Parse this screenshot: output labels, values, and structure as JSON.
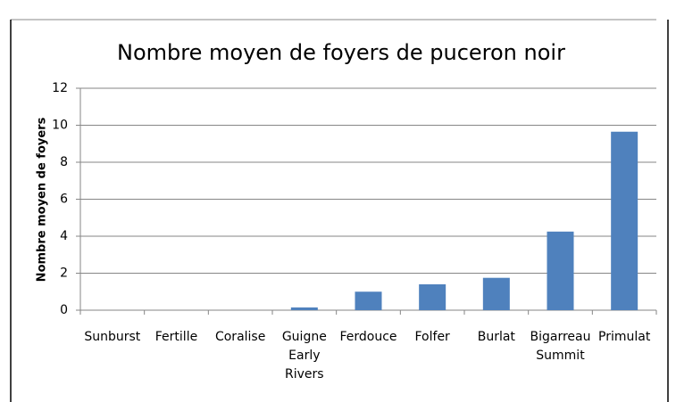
{
  "chart_data": {
    "type": "bar",
    "title": "Nombre moyen de foyers de puceron noir",
    "y_label": "Nombre moyen de foyers",
    "categories": [
      "Sunburst",
      "Fertille",
      "Coralise",
      "Guigne Early Rivers",
      "Ferdouce",
      "Folfer",
      "Burlat",
      "Bigarreau Summit",
      "Primulat"
    ],
    "values": [
      0,
      0,
      0,
      0.15,
      1.0,
      1.4,
      1.75,
      4.25,
      9.65
    ],
    "color": "#4f81bd",
    "ylim": [
      0,
      12
    ],
    "yticks": [
      0,
      2,
      4,
      6,
      8,
      10,
      12
    ],
    "grid": true
  }
}
